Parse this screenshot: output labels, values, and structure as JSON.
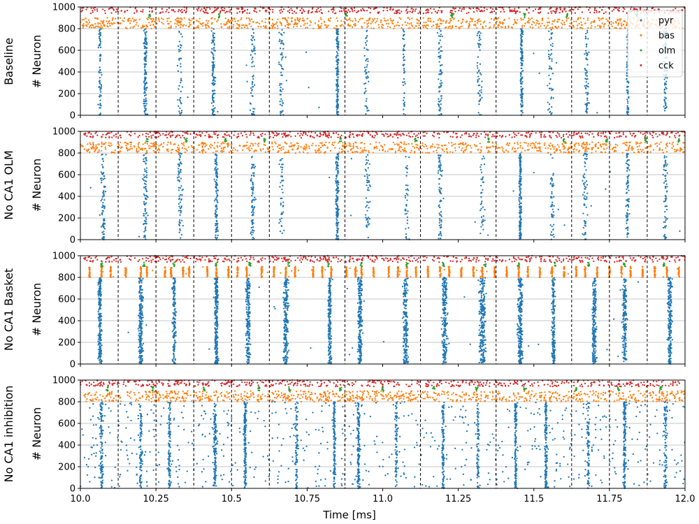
{
  "chart_data": {
    "type": "scatter",
    "x_ticks": [
      "10.0",
      "10.25",
      "10.5",
      "10.75",
      "11.0",
      "11.25",
      "11.5",
      "11.75",
      "12.0"
    ],
    "y_ticks": [
      "0",
      "200",
      "400",
      "600",
      "800",
      "1000"
    ],
    "xlabel": "Time [ms]",
    "xlim": [
      10.0,
      12.0
    ],
    "ylim": [
      0,
      1000
    ],
    "grid": "horizontal",
    "legend_position": "top-right",
    "theta_marker_times": [
      10.125,
      10.25,
      10.375,
      10.5,
      10.625,
      10.875,
      11.125,
      11.375,
      11.625,
      11.75,
      11.875
    ],
    "series": [
      {
        "name": "pyr",
        "color": "#1f77b4",
        "neuron_range": [
          0,
          800
        ]
      },
      {
        "name": "bas",
        "color": "#ff7f0e",
        "neuron_range": [
          800,
          900
        ]
      },
      {
        "name": "olm",
        "color": "#2ca02c",
        "neuron_range": [
          900,
          940
        ]
      },
      {
        "name": "cck",
        "color": "#d62728",
        "neuron_range": [
          940,
          1000
        ]
      }
    ],
    "panels": [
      {
        "condition": "Baseline",
        "ylabel": "# Neuron",
        "pyr_bursts": [
          {
            "t": 10.065,
            "width": 0.008,
            "count": 70,
            "ymax": 800
          },
          {
            "t": 10.215,
            "width": 0.008,
            "count": 120,
            "ymax": 800
          },
          {
            "t": 10.33,
            "width": 0.01,
            "count": 45,
            "ymax": 800
          },
          {
            "t": 10.44,
            "width": 0.008,
            "count": 110,
            "ymax": 800
          },
          {
            "t": 10.57,
            "width": 0.012,
            "count": 55,
            "ymax": 800
          },
          {
            "t": 10.665,
            "width": 0.012,
            "count": 60,
            "ymax": 800
          },
          {
            "t": 10.85,
            "width": 0.006,
            "count": 160,
            "ymax": 800
          },
          {
            "t": 10.945,
            "width": 0.012,
            "count": 45,
            "ymax": 800
          },
          {
            "t": 11.07,
            "width": 0.006,
            "count": 45,
            "ymax": 800
          },
          {
            "t": 11.19,
            "width": 0.01,
            "count": 70,
            "ymax": 800
          },
          {
            "t": 11.32,
            "width": 0.012,
            "count": 50,
            "ymax": 800
          },
          {
            "t": 11.46,
            "width": 0.006,
            "count": 140,
            "ymax": 800
          },
          {
            "t": 11.555,
            "width": 0.012,
            "count": 50,
            "ymax": 800
          },
          {
            "t": 11.675,
            "width": 0.01,
            "count": 65,
            "ymax": 800
          },
          {
            "t": 11.81,
            "width": 0.006,
            "count": 70,
            "ymax": 800
          },
          {
            "t": 11.935,
            "width": 0.01,
            "count": 75,
            "ymax": 800
          }
        ],
        "pyr_background": 20,
        "bas_pattern": "dense",
        "olm_clusters": [
          10.23,
          10.46,
          10.88,
          11.23,
          11.47,
          11.61,
          11.84
        ]
      },
      {
        "condition": "No CA1 OLM",
        "ylabel": "# Neuron",
        "pyr_bursts": [
          {
            "t": 10.075,
            "width": 0.012,
            "count": 80,
            "ymax": 800
          },
          {
            "t": 10.215,
            "width": 0.01,
            "count": 80,
            "ymax": 800
          },
          {
            "t": 10.33,
            "width": 0.012,
            "count": 70,
            "ymax": 800
          },
          {
            "t": 10.45,
            "width": 0.008,
            "count": 110,
            "ymax": 800
          },
          {
            "t": 10.57,
            "width": 0.01,
            "count": 80,
            "ymax": 800
          },
          {
            "t": 10.665,
            "width": 0.012,
            "count": 40,
            "ymax": 800
          },
          {
            "t": 10.85,
            "width": 0.008,
            "count": 140,
            "ymax": 800
          },
          {
            "t": 10.95,
            "width": 0.012,
            "count": 50,
            "ymax": 800
          },
          {
            "t": 11.08,
            "width": 0.01,
            "count": 40,
            "ymax": 800
          },
          {
            "t": 11.19,
            "width": 0.012,
            "count": 70,
            "ymax": 800
          },
          {
            "t": 11.33,
            "width": 0.012,
            "count": 40,
            "ymax": 800
          },
          {
            "t": 11.455,
            "width": 0.006,
            "count": 160,
            "ymax": 800
          },
          {
            "t": 11.56,
            "width": 0.012,
            "count": 50,
            "ymax": 800
          },
          {
            "t": 11.67,
            "width": 0.01,
            "count": 60,
            "ymax": 800
          },
          {
            "t": 11.81,
            "width": 0.008,
            "count": 75,
            "ymax": 800
          },
          {
            "t": 11.935,
            "width": 0.01,
            "count": 60,
            "ymax": 800
          }
        ],
        "pyr_background": 20,
        "bas_pattern": "dense",
        "olm_clusters": [
          10.22,
          10.35,
          10.48,
          10.61,
          10.86,
          11.11,
          11.35,
          11.6,
          11.74,
          11.87,
          11.98
        ]
      },
      {
        "condition": "No CA1 Basket",
        "ylabel": "# Neuron",
        "pyr_bursts": [
          {
            "t": 10.065,
            "width": 0.008,
            "count": 230,
            "ymax": 800
          },
          {
            "t": 10.2,
            "width": 0.01,
            "count": 230,
            "ymax": 800
          },
          {
            "t": 10.31,
            "width": 0.008,
            "count": 150,
            "ymax": 800
          },
          {
            "t": 10.45,
            "width": 0.008,
            "count": 260,
            "ymax": 800
          },
          {
            "t": 10.555,
            "width": 0.01,
            "count": 200,
            "ymax": 800
          },
          {
            "t": 10.68,
            "width": 0.012,
            "count": 220,
            "ymax": 800
          },
          {
            "t": 10.825,
            "width": 0.008,
            "count": 200,
            "ymax": 800
          },
          {
            "t": 10.925,
            "width": 0.01,
            "count": 220,
            "ymax": 800
          },
          {
            "t": 11.075,
            "width": 0.012,
            "count": 200,
            "ymax": 800
          },
          {
            "t": 11.205,
            "width": 0.012,
            "count": 220,
            "ymax": 800
          },
          {
            "t": 11.33,
            "width": 0.016,
            "count": 240,
            "ymax": 800
          },
          {
            "t": 11.455,
            "width": 0.012,
            "count": 230,
            "ymax": 800
          },
          {
            "t": 11.565,
            "width": 0.008,
            "count": 190,
            "ymax": 800
          },
          {
            "t": 11.7,
            "width": 0.01,
            "count": 200,
            "ymax": 800
          },
          {
            "t": 11.8,
            "width": 0.01,
            "count": 180,
            "ymax": 800
          },
          {
            "t": 11.95,
            "width": 0.01,
            "count": 200,
            "ymax": 800
          }
        ],
        "pyr_background": 25,
        "bas_pattern": "columns",
        "bas_columns": [
          10.03,
          10.07,
          10.1,
          10.15,
          10.2,
          10.22,
          10.28,
          10.3,
          10.34,
          10.36,
          10.42,
          10.45,
          10.49,
          10.52,
          10.55,
          10.6,
          10.64,
          10.68,
          10.71,
          10.77,
          10.8,
          10.83,
          10.88,
          10.91,
          10.93,
          10.97,
          11.02,
          11.05,
          11.08,
          11.11,
          11.15,
          11.19,
          11.22,
          11.26,
          11.3,
          11.33,
          11.37,
          11.41,
          11.45,
          11.48,
          11.52,
          11.56,
          11.6,
          11.64,
          11.67,
          11.71,
          11.75,
          11.79,
          11.82,
          11.86,
          11.9,
          11.94,
          11.98
        ],
        "olm_clusters": [
          10.07,
          10.21,
          10.31,
          10.45,
          10.56,
          10.69,
          10.82,
          10.93,
          11.08,
          11.2,
          11.34,
          11.45,
          11.57,
          11.68,
          11.8,
          11.93
        ]
      },
      {
        "condition": "No CA1 inhibition",
        "ylabel": "# Neuron",
        "pyr_bursts": [
          {
            "t": 10.07,
            "width": 0.008,
            "count": 120,
            "ymax": 800
          },
          {
            "t": 10.2,
            "width": 0.006,
            "count": 90,
            "ymax": 800
          },
          {
            "t": 10.295,
            "width": 0.006,
            "count": 100,
            "ymax": 800
          },
          {
            "t": 10.445,
            "width": 0.008,
            "count": 140,
            "ymax": 800
          },
          {
            "t": 10.545,
            "width": 0.006,
            "count": 160,
            "ymax": 800
          },
          {
            "t": 10.715,
            "width": 0.006,
            "count": 80,
            "ymax": 800
          },
          {
            "t": 10.84,
            "width": 0.006,
            "count": 130,
            "ymax": 800
          },
          {
            "t": 10.92,
            "width": 0.006,
            "count": 150,
            "ymax": 800
          },
          {
            "t": 11.045,
            "width": 0.006,
            "count": 80,
            "ymax": 800
          },
          {
            "t": 11.2,
            "width": 0.006,
            "count": 110,
            "ymax": 800
          },
          {
            "t": 11.315,
            "width": 0.006,
            "count": 80,
            "ymax": 800
          },
          {
            "t": 11.44,
            "width": 0.006,
            "count": 140,
            "ymax": 800
          },
          {
            "t": 11.54,
            "width": 0.006,
            "count": 140,
            "ymax": 800
          },
          {
            "t": 11.68,
            "width": 0.006,
            "count": 80,
            "ymax": 800
          },
          {
            "t": 11.8,
            "width": 0.006,
            "count": 150,
            "ymax": 800
          },
          {
            "t": 11.935,
            "width": 0.008,
            "count": 90,
            "ymax": 800
          }
        ],
        "pyr_background": 650,
        "bas_pattern": "dense",
        "olm_clusters": [
          10.09,
          10.24,
          10.41,
          10.59,
          10.69,
          10.86,
          11.0,
          11.17,
          11.31,
          11.47,
          11.64,
          11.78,
          11.92
        ]
      }
    ]
  }
}
